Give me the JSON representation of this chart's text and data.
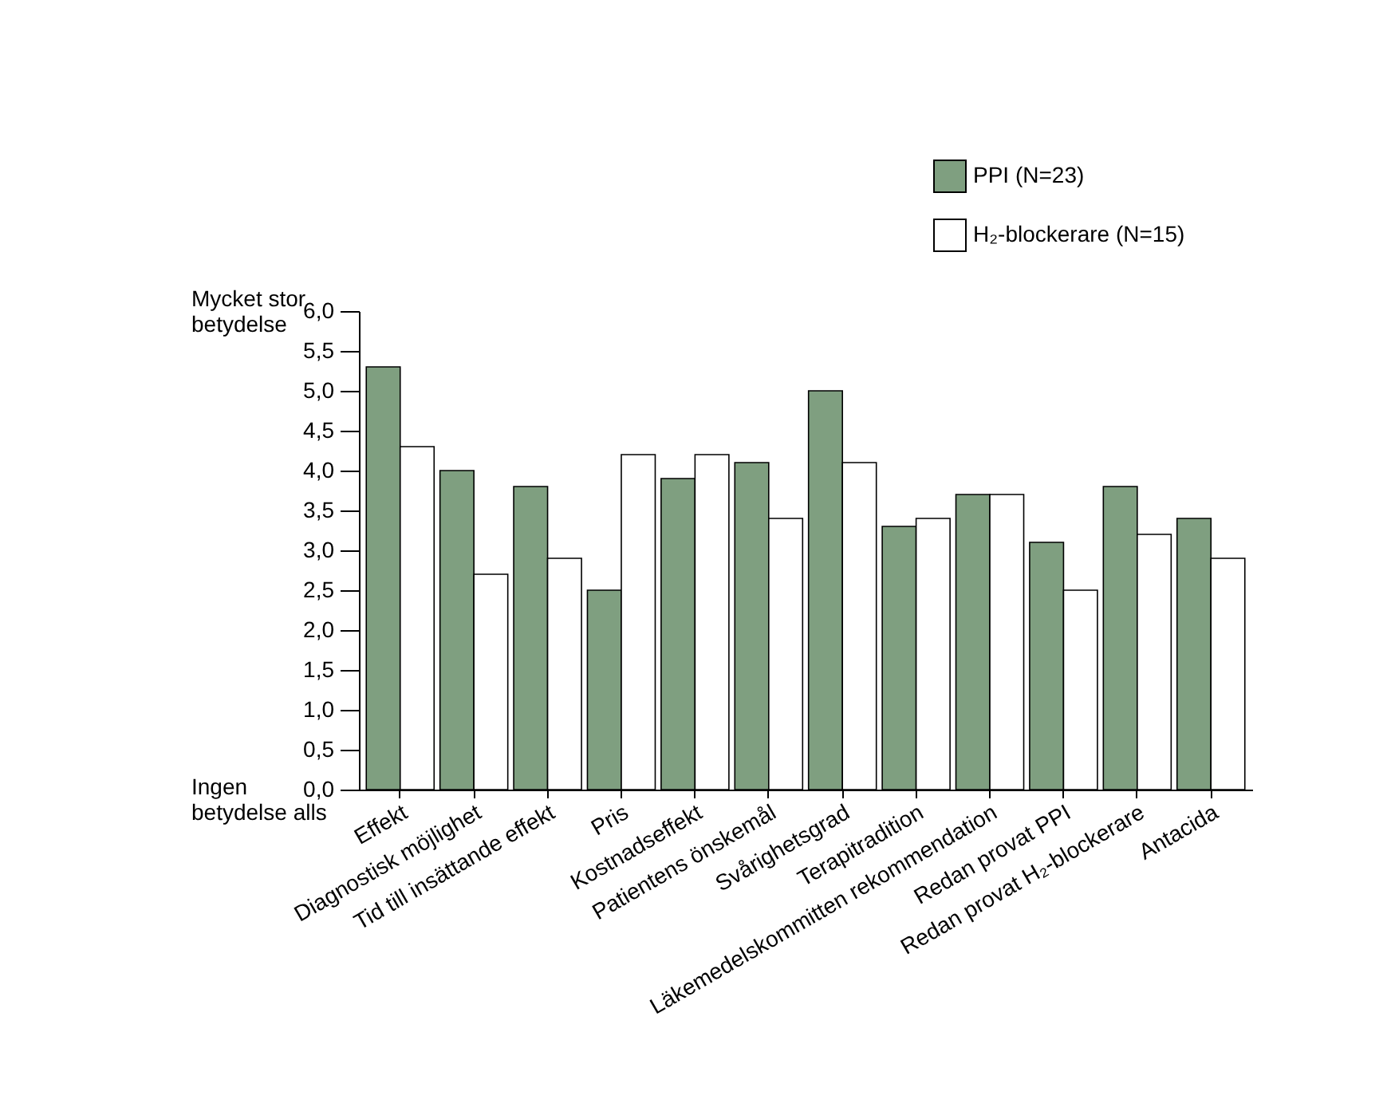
{
  "chart_data": {
    "type": "bar",
    "categories": [
      "Effekt",
      "Diagnostisk möjlighet",
      "Tid till insättande effekt",
      "Pris",
      "Kostnadseffekt",
      "Patientens önskemål",
      "Svårighetsgrad",
      "Terapitradition",
      "Läkemedelskommitten rekommendation",
      "Redan provat PPI",
      "Redan provat H₂-blockerare",
      "Antacida"
    ],
    "series": [
      {
        "name": "PPI (N=23)",
        "color": "#7f9f80",
        "values": [
          5.3,
          4.0,
          3.8,
          2.5,
          3.9,
          4.1,
          5.0,
          3.3,
          3.7,
          3.1,
          3.8,
          3.4
        ]
      },
      {
        "name": "H₂-blockerare (N=15)",
        "color": "#ffffff",
        "values": [
          4.3,
          2.7,
          2.9,
          4.2,
          4.2,
          3.4,
          4.1,
          3.4,
          3.7,
          2.5,
          3.2,
          2.9
        ]
      }
    ],
    "ylim": [
      0,
      6
    ],
    "yticks": [
      {
        "value": 0,
        "label": "0,0"
      },
      {
        "value": 0.5,
        "label": "0,5"
      },
      {
        "value": 1,
        "label": "1,0"
      },
      {
        "value": 1.5,
        "label": "1,5"
      },
      {
        "value": 2,
        "label": "2,0"
      },
      {
        "value": 2.5,
        "label": "2,5"
      },
      {
        "value": 3,
        "label": "3,0"
      },
      {
        "value": 3.5,
        "label": "3,5"
      },
      {
        "value": 4,
        "label": "4,0"
      },
      {
        "value": 4.5,
        "label": "4,5"
      },
      {
        "value": 5,
        "label": "5,0"
      },
      {
        "value": 5.5,
        "label": "5,5"
      },
      {
        "value": 6,
        "label": "6,0"
      }
    ],
    "annotations": [
      "Mycket stor\nbetydelse",
      "Ingen\nbetydelse alls"
    ],
    "legend": "top right",
    "grid": false
  }
}
